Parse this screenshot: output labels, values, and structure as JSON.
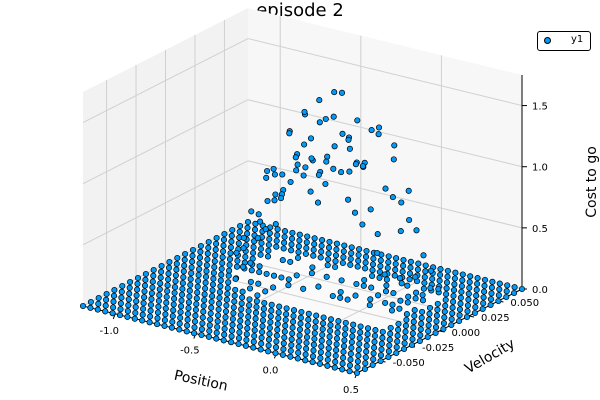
{
  "chart_data": {
    "type": "scatter",
    "title": "episode 2",
    "xlabel": "Position",
    "ylabel": "Velocity",
    "zlabel": "Cost to go",
    "xlim": [
      -1.2,
      0.5
    ],
    "ylim": [
      -0.07,
      0.07
    ],
    "zlim": [
      0,
      1.75
    ],
    "xticks": [
      "-1.0",
      "-0.5",
      "0.0",
      "0.5"
    ],
    "yticks": [
      "-0.050",
      "-0.025",
      "0.000",
      "0.025",
      "0.050"
    ],
    "zticks": [
      "0.0",
      "0.5",
      "1.0",
      "1.5"
    ],
    "grid": true,
    "legend_position": "top-right",
    "marker_color": "#009af9",
    "series": [
      {
        "name": "y1",
        "grid": {
          "x_min": -1.2,
          "x_max": 0.5,
          "nx": 38,
          "y_min": -0.07,
          "y_max": 0.07,
          "ny": 22
        },
        "base_value": 0.0,
        "raised_region": {
          "x_range": [
            -0.85,
            0.25
          ],
          "y_range": [
            -0.012,
            0.05
          ],
          "peak_value": 1.55,
          "peak_x": -0.35,
          "peak_y": 0.03
        },
        "gap_region": {
          "x_range": [
            -0.55,
            0.25
          ],
          "y_range": [
            -0.012,
            0.004
          ]
        }
      }
    ]
  }
}
